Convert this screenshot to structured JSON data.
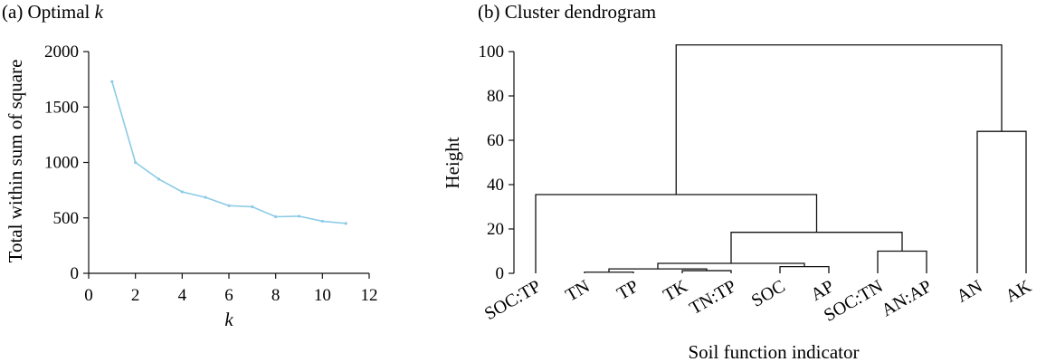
{
  "chart_data": [
    {
      "type": "line",
      "title_prefix": "(a) Optimal ",
      "title_var": "k",
      "xlabel": "k",
      "ylabel": "Total within sum of square",
      "xlim": [
        0,
        12
      ],
      "ylim": [
        0,
        2000
      ],
      "xticks": [
        0,
        2,
        4,
        6,
        8,
        10,
        12
      ],
      "yticks": [
        0,
        500,
        1000,
        1500,
        2000
      ],
      "line_color": "#8ccbe6",
      "x": [
        1,
        2,
        3,
        4,
        5,
        6,
        7,
        8,
        9,
        10,
        11
      ],
      "y": [
        1730,
        1000,
        850,
        735,
        685,
        610,
        600,
        510,
        515,
        470,
        450
      ]
    },
    {
      "type": "dendrogram",
      "title": "(b) Cluster dendrogram",
      "xlabel": "Soil function indicator",
      "ylabel": "Height",
      "ylim": [
        0,
        100
      ],
      "yticks": [
        0,
        20,
        40,
        60,
        80,
        100
      ],
      "leaves": [
        "SOC:TP",
        "TN",
        "TP",
        "TK",
        "TN:TP",
        "SOC",
        "AP",
        "SOC:TN",
        "AN:AP",
        "AN",
        "AK"
      ],
      "merges": [
        {
          "left": 1,
          "right": 2,
          "height": 0.5
        },
        {
          "left": 3,
          "right": 4,
          "height": 1.2
        },
        {
          "left": 5,
          "right": 6,
          "height": 3.0
        },
        {
          "left": "m0",
          "right": "m1",
          "height": 2.0
        },
        {
          "left": "m3",
          "right": "m2",
          "height": 4.5
        },
        {
          "left": 7,
          "right": 8,
          "height": 10.0
        },
        {
          "left": "m4",
          "right": "m5",
          "height": 18.5
        },
        {
          "left": 0,
          "right": "m6",
          "height": 35.5
        },
        {
          "left": 9,
          "right": 10,
          "height": 64.0
        },
        {
          "left": "m7",
          "right": "m8",
          "height": 103.0
        }
      ]
    }
  ]
}
